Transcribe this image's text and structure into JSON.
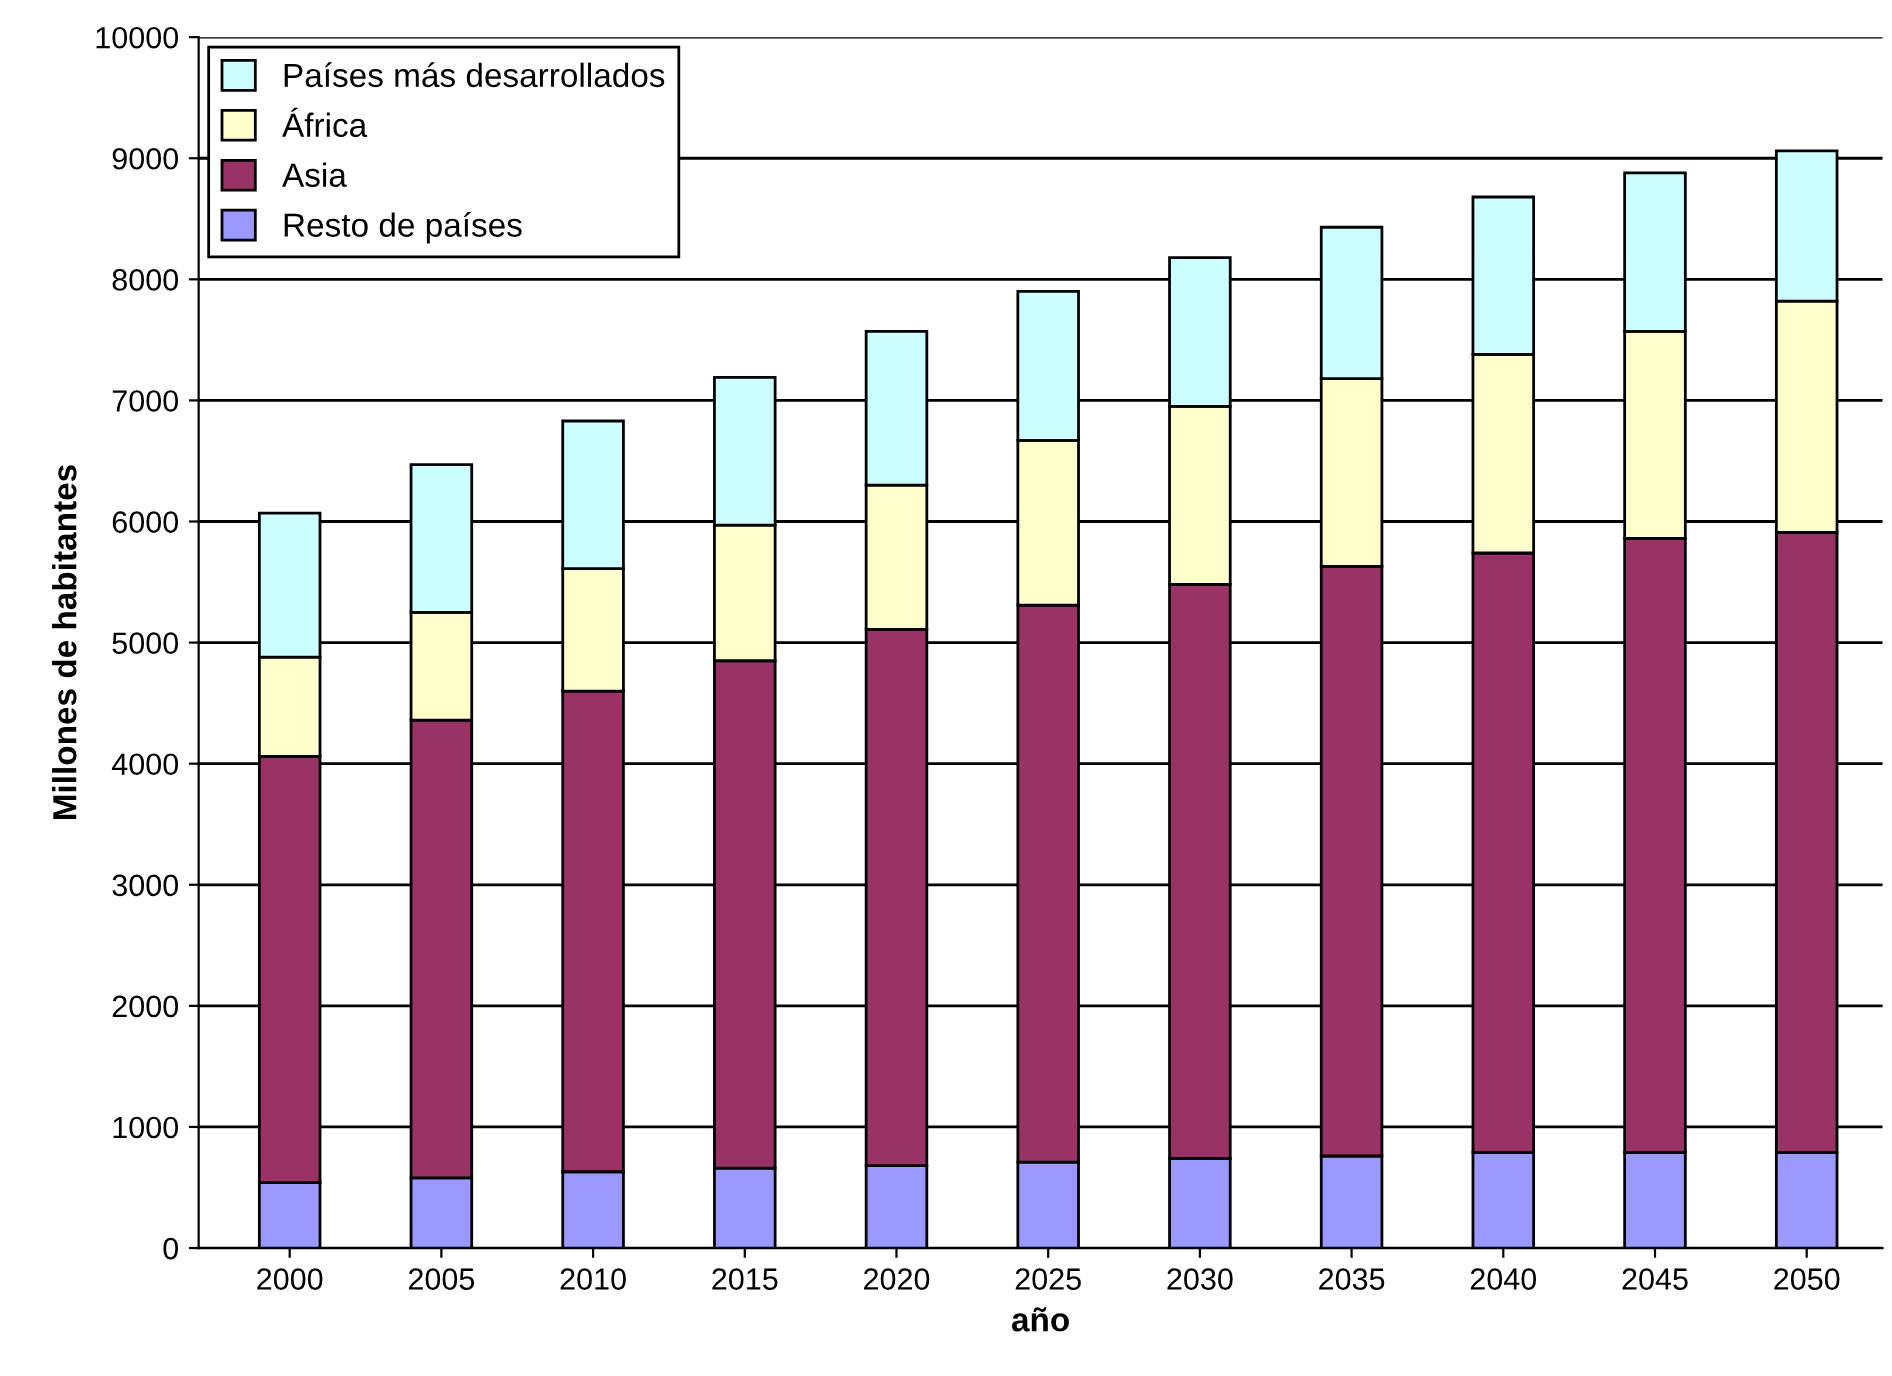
{
  "chart_data": {
    "type": "bar",
    "stacked": true,
    "xlabel": "año",
    "ylabel": "Millones de habitantes",
    "categories": [
      "2000",
      "2005",
      "2010",
      "2015",
      "2020",
      "2025",
      "2030",
      "2035",
      "2040",
      "2045",
      "2050"
    ],
    "series": [
      {
        "name": "Resto de países",
        "color": "#9999ff",
        "values": [
          540,
          580,
          630,
          660,
          680,
          710,
          740,
          760,
          790,
          790,
          790
        ]
      },
      {
        "name": "Asia",
        "color": "#993366",
        "values": [
          3520,
          3780,
          3970,
          4190,
          4430,
          4600,
          4740,
          4870,
          4950,
          5070,
          5120
        ]
      },
      {
        "name": "África",
        "color": "#ffffcc",
        "values": [
          820,
          890,
          1010,
          1120,
          1190,
          1360,
          1470,
          1550,
          1640,
          1710,
          1910
        ]
      },
      {
        "name": "Países más desarrollados",
        "color": "#ccffff",
        "values": [
          1190,
          1220,
          1220,
          1220,
          1270,
          1230,
          1230,
          1250,
          1300,
          1310,
          1240
        ]
      }
    ],
    "ylim": [
      0,
      10000
    ],
    "yticks": [
      0,
      1000,
      2000,
      3000,
      4000,
      5000,
      6000,
      7000,
      8000,
      9000,
      10000
    ],
    "grid": "y",
    "legend": "top left"
  }
}
